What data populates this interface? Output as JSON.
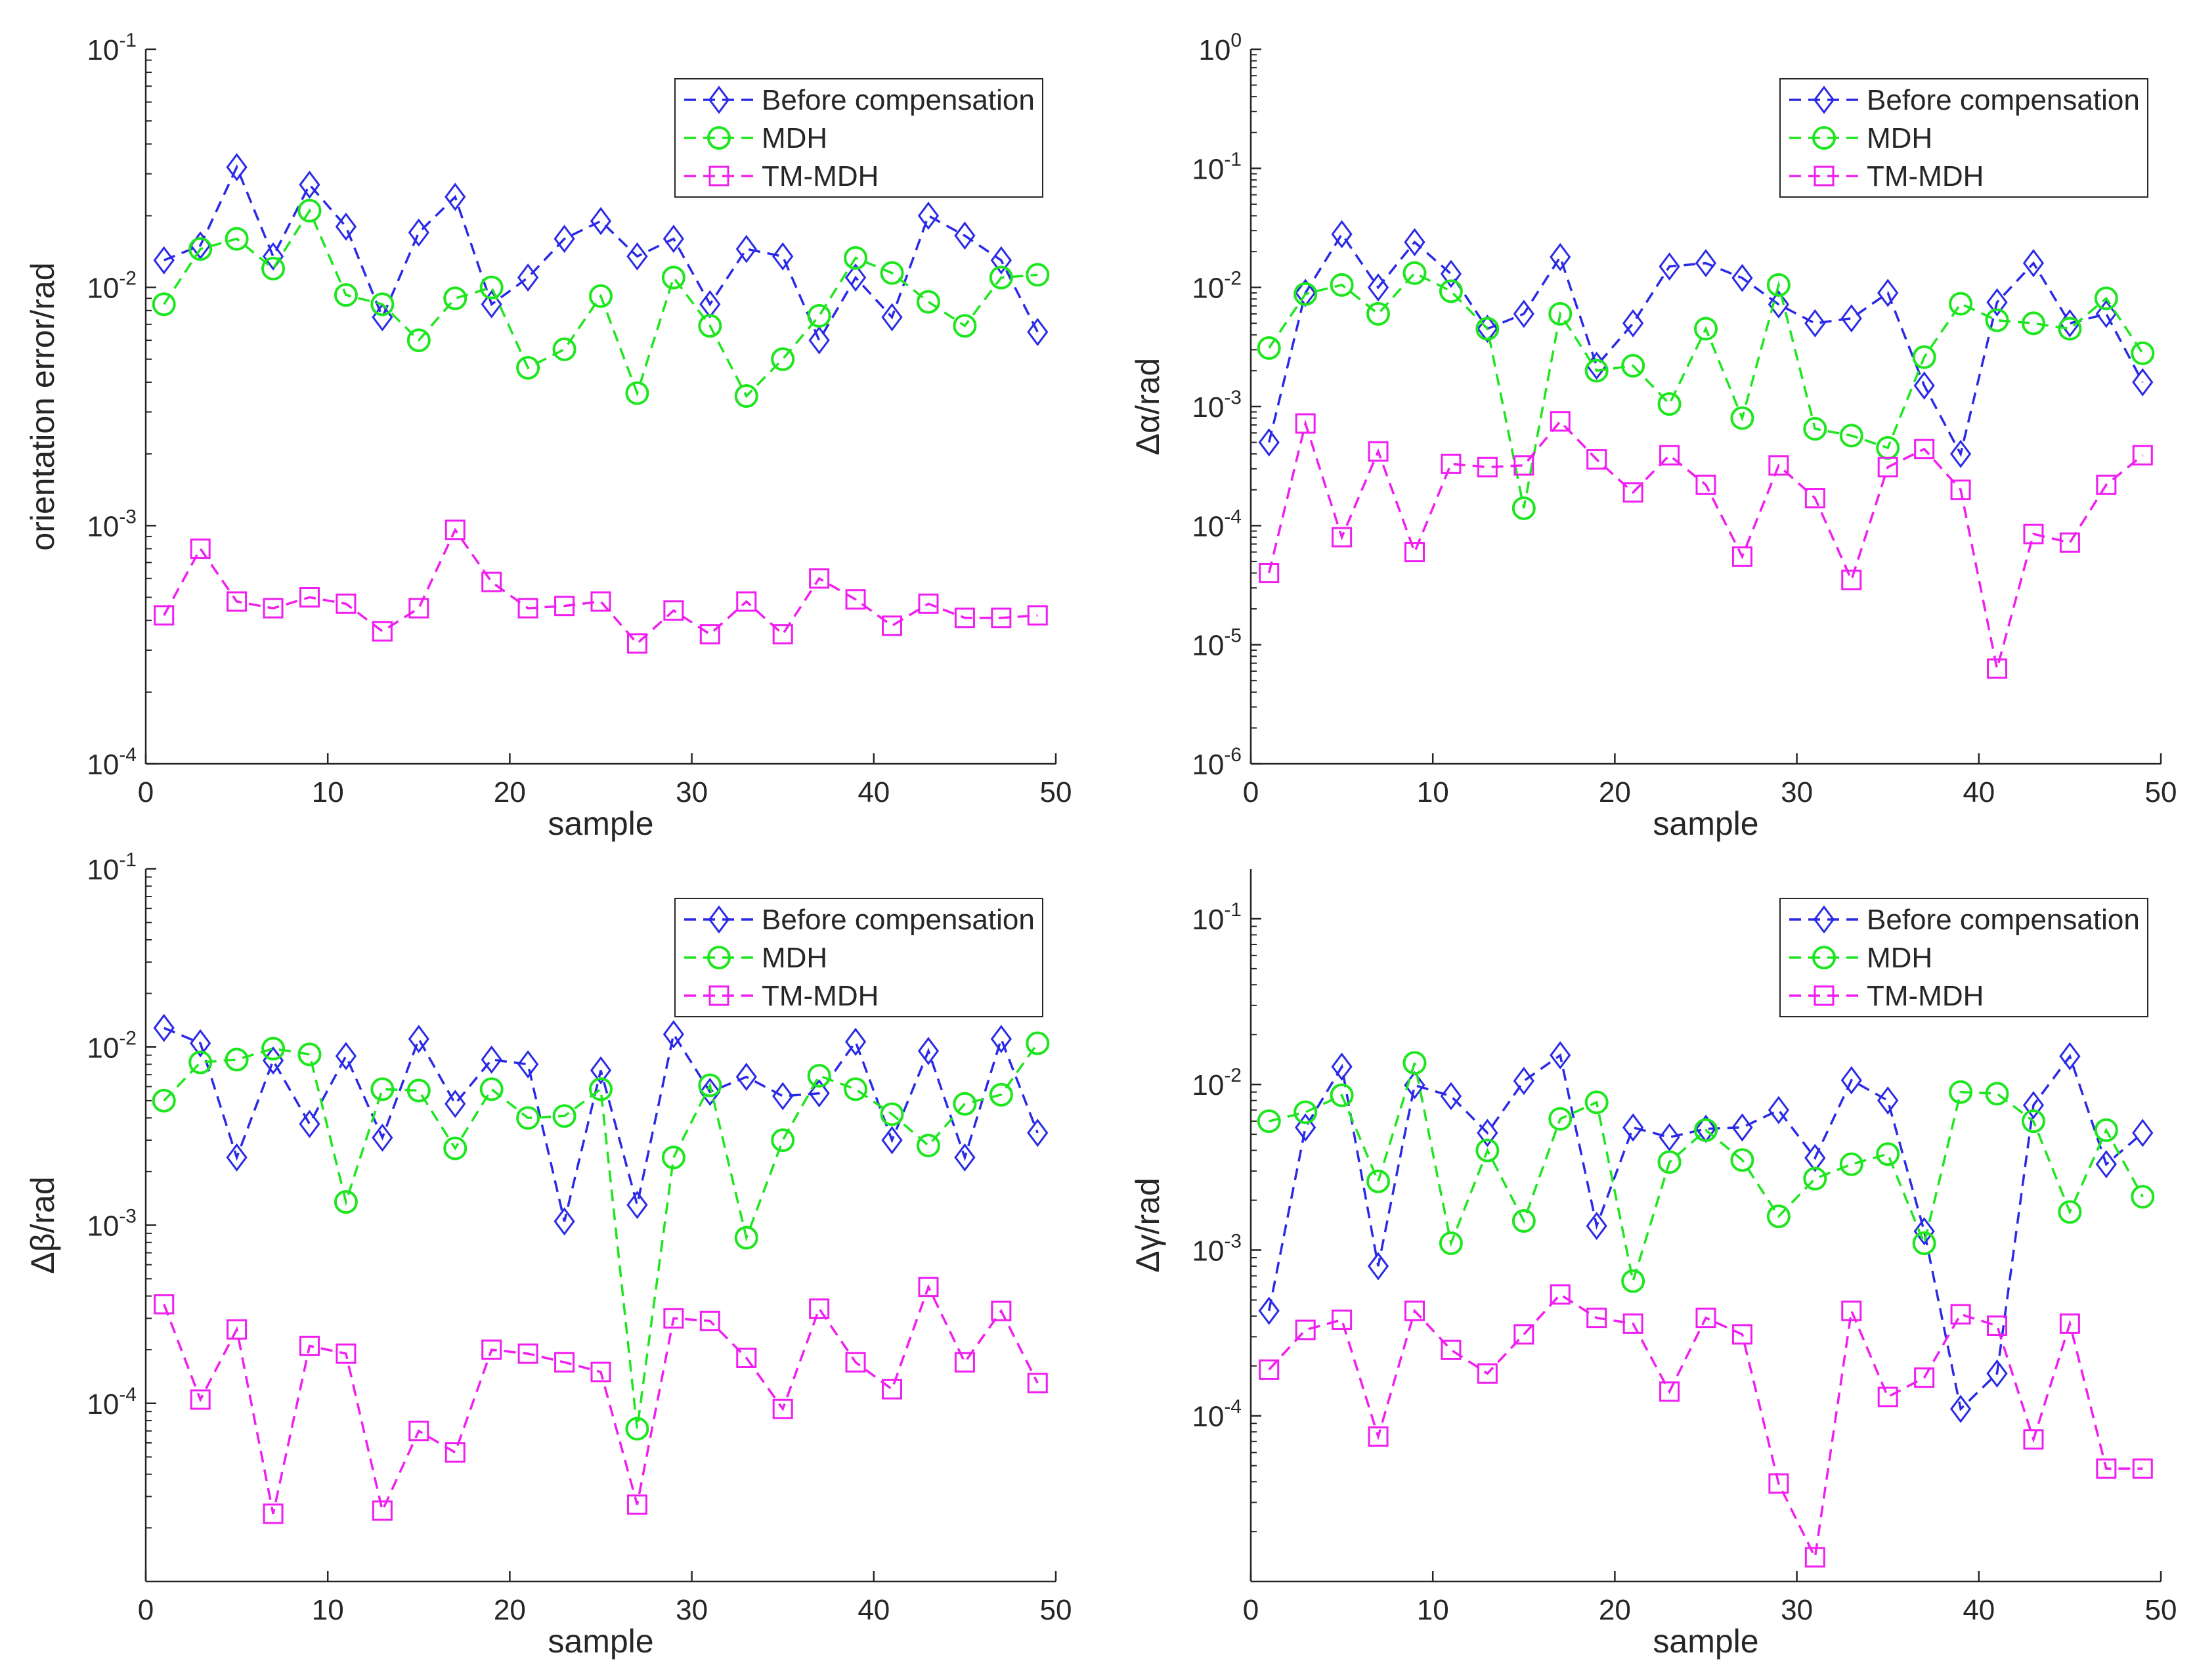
{
  "chart_data": [
    {
      "type": "line",
      "yscale": "log",
      "xlabel": "sample",
      "ylabel": "orientation error/rad",
      "xlim": [
        0,
        50
      ],
      "ylim": [
        0.0001,
        0.1
      ],
      "xticks": [
        0,
        10,
        20,
        30,
        40,
        50
      ],
      "yticks": [
        {
          "value": 0.0001,
          "exp": "-4"
        },
        {
          "value": 0.001,
          "exp": "-3"
        },
        {
          "value": 0.01,
          "exp": "-2"
        },
        {
          "value": 0.1,
          "exp": "-1"
        }
      ],
      "legend_position": "top-right",
      "x": [
        1,
        3,
        5,
        7,
        9,
        11,
        13,
        15,
        17,
        19,
        21,
        23,
        25,
        27,
        29,
        31,
        33,
        35,
        37,
        39,
        41,
        43,
        45,
        47,
        49
      ],
      "series": [
        {
          "name": "Before compensation",
          "color": "#2a2ae6",
          "marker": "diamond",
          "values": [
            0.013,
            0.015,
            0.032,
            0.0135,
            0.027,
            0.018,
            0.0075,
            0.017,
            0.024,
            0.0085,
            0.011,
            0.016,
            0.019,
            0.0135,
            0.016,
            0.0085,
            0.0145,
            0.0135,
            0.006,
            0.011,
            0.0075,
            0.02,
            0.0165,
            0.013,
            0.0065
          ]
        },
        {
          "name": "MDH",
          "color": "#1ee61e",
          "marker": "circle",
          "values": [
            0.0085,
            0.0145,
            0.016,
            0.012,
            0.021,
            0.0093,
            0.0085,
            0.006,
            0.009,
            0.01,
            0.0046,
            0.0055,
            0.0092,
            0.0036,
            0.011,
            0.0069,
            0.0035,
            0.005,
            0.0076,
            0.0133,
            0.0115,
            0.0087,
            0.0069,
            0.011,
            0.0113
          ]
        },
        {
          "name": "TM-MDH",
          "color": "#f01ef0",
          "marker": "square",
          "values": [
            0.00042,
            0.0008,
            0.00048,
            0.00045,
            0.0005,
            0.00047,
            0.00036,
            0.00045,
            0.00096,
            0.00058,
            0.00045,
            0.00046,
            0.00048,
            0.00032,
            0.00044,
            0.00035,
            0.00048,
            0.00035,
            0.0006,
            0.00049,
            0.00038,
            0.00047,
            0.00041,
            0.00041,
            0.00042
          ]
        }
      ]
    },
    {
      "type": "line",
      "yscale": "log",
      "xlabel": "sample",
      "ylabel": "Δα/rad",
      "xlim": [
        0,
        50
      ],
      "ylim": [
        1e-06,
        1
      ],
      "xticks": [
        0,
        10,
        20,
        30,
        40,
        50
      ],
      "yticks": [
        {
          "value": 1e-06,
          "exp": "-6"
        },
        {
          "value": 1e-05,
          "exp": "-5"
        },
        {
          "value": 0.0001,
          "exp": "-4"
        },
        {
          "value": 0.001,
          "exp": "-3"
        },
        {
          "value": 0.01,
          "exp": "-2"
        },
        {
          "value": 0.1,
          "exp": "-1"
        },
        {
          "value": 1,
          "exp": "0"
        }
      ],
      "legend_position": "top-right",
      "x": [
        1,
        3,
        5,
        7,
        9,
        11,
        13,
        15,
        17,
        19,
        21,
        23,
        25,
        27,
        29,
        31,
        33,
        35,
        37,
        39,
        41,
        43,
        45,
        47,
        49
      ],
      "series": [
        {
          "name": "Before compensation",
          "color": "#2a2ae6",
          "marker": "diamond",
          "values": [
            0.0005,
            0.009,
            0.028,
            0.01,
            0.024,
            0.013,
            0.0045,
            0.006,
            0.018,
            0.0022,
            0.005,
            0.015,
            0.016,
            0.012,
            0.0072,
            0.005,
            0.0055,
            0.009,
            0.0015,
            0.0004,
            0.0075,
            0.016,
            0.005,
            0.006,
            0.0016
          ]
        },
        {
          "name": "MDH",
          "color": "#1ee61e",
          "marker": "circle",
          "values": [
            0.0031,
            0.0088,
            0.0105,
            0.006,
            0.0132,
            0.0093,
            0.0045,
            0.00014,
            0.006,
            0.002,
            0.0022,
            0.00105,
            0.0045,
            0.0008,
            0.0105,
            0.00065,
            0.00057,
            0.00045,
            0.0026,
            0.0073,
            0.0053,
            0.005,
            0.0045,
            0.0081,
            0.0028
          ]
        },
        {
          "name": "TM-MDH",
          "color": "#f01ef0",
          "marker": "square",
          "values": [
            4e-05,
            0.00072,
            8e-05,
            0.00042,
            6e-05,
            0.00033,
            0.00031,
            0.00032,
            0.00075,
            0.00036,
            0.00019,
            0.00039,
            0.00022,
            5.5e-05,
            0.00032,
            0.00017,
            3.5e-05,
            0.00031,
            0.00044,
            0.0002,
            6.3e-06,
            8.5e-05,
            7.2e-05,
            0.00022,
            0.00039
          ]
        }
      ]
    },
    {
      "type": "line",
      "yscale": "log",
      "xlabel": "sample",
      "ylabel": "Δβ/rad",
      "xlim": [
        0,
        50
      ],
      "ylim": [
        1e-05,
        0.1
      ],
      "xticks": [
        0,
        10,
        20,
        30,
        40,
        50
      ],
      "yticks": [
        {
          "value": 0.0001,
          "exp": "-4"
        },
        {
          "value": 0.001,
          "exp": "-3"
        },
        {
          "value": 0.01,
          "exp": "-2"
        },
        {
          "value": 0.1,
          "exp": "-1"
        }
      ],
      "legend_position": "top-right",
      "x": [
        1,
        3,
        5,
        7,
        9,
        11,
        13,
        15,
        17,
        19,
        21,
        23,
        25,
        27,
        29,
        31,
        33,
        35,
        37,
        39,
        41,
        43,
        45,
        47,
        49
      ],
      "series": [
        {
          "name": "Before compensation",
          "color": "#2a2ae6",
          "marker": "diamond",
          "values": [
            0.0128,
            0.0105,
            0.0024,
            0.0084,
            0.0037,
            0.0089,
            0.0031,
            0.0111,
            0.0048,
            0.0085,
            0.008,
            0.00105,
            0.0074,
            0.0013,
            0.0118,
            0.0056,
            0.0068,
            0.0053,
            0.0055,
            0.0107,
            0.003,
            0.0095,
            0.0024,
            0.0111,
            0.0033
          ]
        },
        {
          "name": "MDH",
          "color": "#1ee61e",
          "marker": "circle",
          "values": [
            0.005,
            0.0082,
            0.0085,
            0.0098,
            0.0091,
            0.00135,
            0.0058,
            0.0057,
            0.0027,
            0.0058,
            0.004,
            0.0041,
            0.0058,
            7.2e-05,
            0.0024,
            0.0061,
            0.00085,
            0.003,
            0.0069,
            0.0058,
            0.0042,
            0.0028,
            0.0048,
            0.0054,
            0.0105
          ]
        },
        {
          "name": "TM-MDH",
          "color": "#f01ef0",
          "marker": "square",
          "values": [
            0.00036,
            0.000105,
            0.00026,
            2.4e-05,
            0.00021,
            0.00019,
            2.5e-05,
            7e-05,
            5.3e-05,
            0.0002,
            0.00019,
            0.00017,
            0.00015,
            2.7e-05,
            0.0003,
            0.00029,
            0.00018,
            9.3e-05,
            0.00034,
            0.00017,
            0.00012,
            0.00045,
            0.00017,
            0.00033,
            0.00013
          ]
        }
      ]
    },
    {
      "type": "line",
      "yscale": "log",
      "xlabel": "sample",
      "ylabel": "Δγ/rad",
      "xlim": [
        0,
        50
      ],
      "ylim": [
        1e-05,
        0.2
      ],
      "xticks": [
        0,
        10,
        20,
        30,
        40,
        50
      ],
      "yticks": [
        {
          "value": 0.0001,
          "exp": "-4"
        },
        {
          "value": 0.001,
          "exp": "-3"
        },
        {
          "value": 0.01,
          "exp": "-2"
        },
        {
          "value": 0.1,
          "exp": "-1"
        }
      ],
      "legend_position": "top-right",
      "x": [
        1,
        3,
        5,
        7,
        9,
        11,
        13,
        15,
        17,
        19,
        21,
        23,
        25,
        27,
        29,
        31,
        33,
        35,
        37,
        39,
        41,
        43,
        45,
        47,
        49
      ],
      "series": [
        {
          "name": "Before compensation",
          "color": "#2a2ae6",
          "marker": "diamond",
          "values": [
            0.00043,
            0.0055,
            0.0128,
            0.0008,
            0.0099,
            0.0085,
            0.0051,
            0.0105,
            0.015,
            0.0014,
            0.0055,
            0.0048,
            0.0054,
            0.0055,
            0.007,
            0.0036,
            0.0106,
            0.008,
            0.0013,
            0.00011,
            0.00018,
            0.0075,
            0.0148,
            0.0033,
            0.0051
          ]
        },
        {
          "name": "MDH",
          "color": "#1ee61e",
          "marker": "circle",
          "values": [
            0.006,
            0.0068,
            0.0086,
            0.0026,
            0.0135,
            0.0011,
            0.004,
            0.0015,
            0.0062,
            0.0078,
            0.00065,
            0.0034,
            0.0053,
            0.0035,
            0.0016,
            0.0027,
            0.0033,
            0.0038,
            0.0011,
            0.009,
            0.0088,
            0.006,
            0.0017,
            0.0053,
            0.0021
          ]
        },
        {
          "name": "TM-MDH",
          "color": "#f01ef0",
          "marker": "square",
          "values": [
            0.00019,
            0.00033,
            0.00038,
            7.5e-05,
            0.00043,
            0.00025,
            0.00018,
            0.00031,
            0.00054,
            0.00039,
            0.00036,
            0.00014,
            0.00039,
            0.00031,
            3.9e-05,
            1.4e-05,
            0.00043,
            0.00013,
            0.00017,
            0.00041,
            0.00035,
            7.2e-05,
            0.00036,
            4.8e-05,
            4.8e-05
          ]
        }
      ]
    }
  ]
}
